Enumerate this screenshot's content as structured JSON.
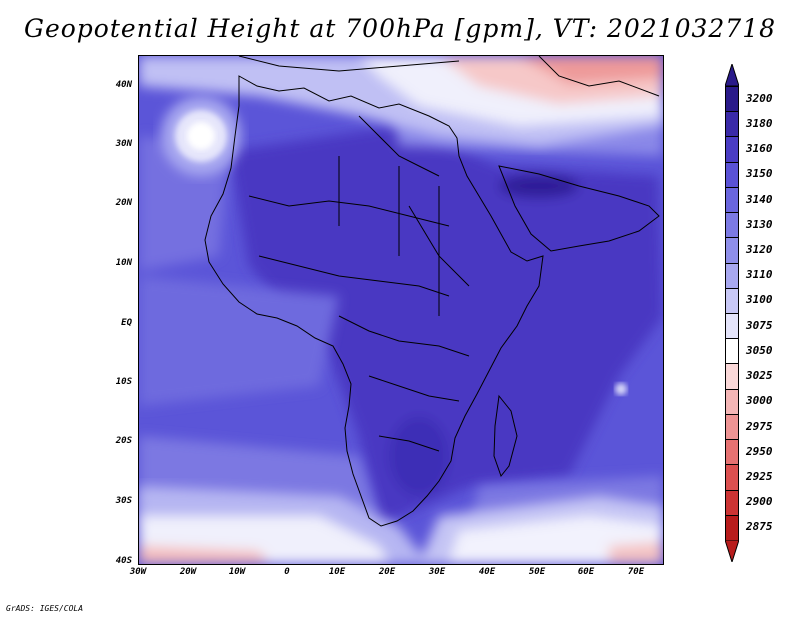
{
  "title": "Geopotential Height at 700hPa [gpm], VT: 2021032718",
  "lat_labels": [
    "40N",
    "30N",
    "20N",
    "10N",
    "EQ",
    "10S",
    "20S",
    "30S",
    "40S"
  ],
  "lon_labels": [
    "30W",
    "20W",
    "10W",
    "0",
    "10E",
    "20E",
    "30E",
    "40E",
    "50E",
    "60E",
    "70E"
  ],
  "colorbar": {
    "levels": [
      "3200",
      "3180",
      "3160",
      "3150",
      "3140",
      "3130",
      "3120",
      "3110",
      "3100",
      "3075",
      "3050",
      "3025",
      "3000",
      "2975",
      "2950",
      "2925",
      "2900",
      "2875"
    ],
    "colors": [
      "#2a1a8a",
      "#3a2aa8",
      "#4a3cc4",
      "#5a52d6",
      "#6a66de",
      "#7c7ae4",
      "#8f8fea",
      "#a8a8f0",
      "#c8c8f6",
      "#e4e4fa",
      "#ffffff",
      "#fad8d8",
      "#f4b6b6",
      "#ee9494",
      "#e67272",
      "#dc5050",
      "#cc3434",
      "#b81c1c"
    ]
  },
  "credit": "GrADS: IGES/COLA"
}
